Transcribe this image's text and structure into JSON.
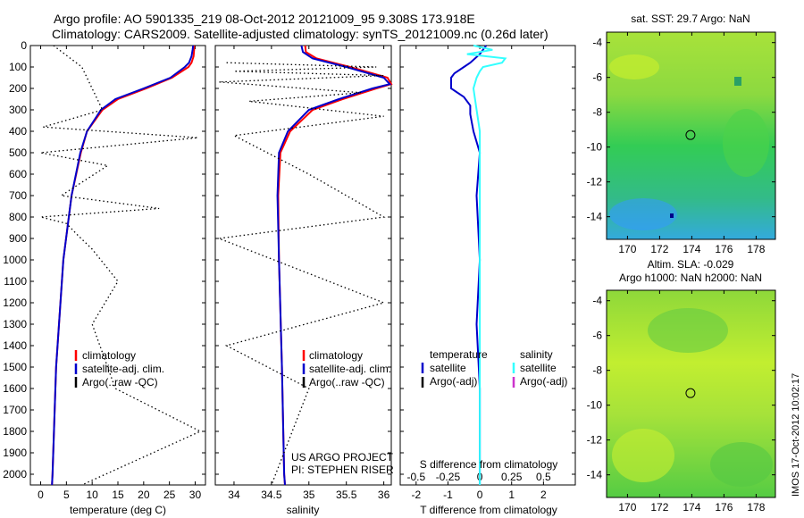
{
  "header": {
    "title_line1": "Argo profile: AO 5901335_219 08-Oct-2012 20121009_95 9.308S 173.918E",
    "title_line2": "Climatology: CARS2009. Satellite-adjusted climatology: synTS_20121009.nc (0.26d later)"
  },
  "map_titles": {
    "top": "sat. SST: 29.7 Argo: NaN",
    "bottom_line1": "Altim. SLA: -0.029",
    "bottom_line2": "Argo h1000: NaN h2000: NaN"
  },
  "side_stamp": "IMOS 17-Oct-2012 10:02:17",
  "credits": {
    "line1": "US ARGO PROJECT",
    "line2": "PI: STEPHEN RISER"
  },
  "colors": {
    "climatology": "#ff0000",
    "satellite": "#0000cc",
    "satellite_salinity_diff": "#33ffff",
    "argo": "#000000",
    "argo_salinity_diff": "#cc33cc"
  },
  "chart_data": [
    {
      "type": "line",
      "panel": "temperature",
      "xlabel": "temperature (deg C)",
      "ylabel": "",
      "xlim": [
        -2,
        32
      ],
      "ylim": [
        0,
        2050
      ],
      "y_reversed": true,
      "xticks": [
        0,
        5,
        10,
        15,
        20,
        25,
        30
      ],
      "yticks": [
        0,
        100,
        200,
        300,
        400,
        500,
        600,
        700,
        800,
        900,
        1000,
        1100,
        1200,
        1300,
        1400,
        1500,
        1600,
        1700,
        1800,
        1900,
        2000
      ],
      "legend": [
        "climatology",
        "satellite-adj. clim.",
        "Argo(..raw -QC)"
      ],
      "series": [
        {
          "name": "climatology",
          "depth": [
            0,
            20,
            50,
            80,
            100,
            150,
            200,
            250,
            300,
            400,
            500,
            700,
            1000,
            1500,
            2000,
            2050
          ],
          "values": [
            29.8,
            29.8,
            29.7,
            29.3,
            28.7,
            25.5,
            20.5,
            15.0,
            12.0,
            9.0,
            7.8,
            6.0,
            4.4,
            3.0,
            2.3,
            2.2
          ]
        },
        {
          "name": "satellite-adj. clim.",
          "depth": [
            0,
            20,
            50,
            80,
            100,
            150,
            200,
            250,
            300,
            400,
            500,
            700,
            1000,
            1500,
            2000,
            2050
          ],
          "values": [
            29.6,
            29.5,
            29.3,
            28.8,
            28.0,
            25.2,
            20.0,
            14.5,
            11.7,
            9.0,
            7.7,
            6.0,
            4.4,
            3.0,
            2.3,
            2.2
          ]
        },
        {
          "name": "Argo(..raw -QC)",
          "depth": [
            0,
            100,
            300,
            380,
            430,
            500,
            560,
            700,
            760,
            800,
            830,
            880,
            950,
            1100,
            1300,
            1600,
            1800,
            2050
          ],
          "values": [
            2.5,
            8.0,
            12.0,
            0.5,
            30.5,
            0.0,
            13.0,
            4.0,
            23.0,
            0.0,
            5.0,
            7.0,
            10.0,
            15.0,
            10.0,
            14.5,
            31.0,
            8.0
          ]
        }
      ]
    },
    {
      "type": "line",
      "panel": "salinity",
      "xlabel": "salinity",
      "xlim": [
        33.75,
        36.1
      ],
      "ylim": [
        0,
        2050
      ],
      "y_reversed": true,
      "xticks": [
        34,
        34.5,
        35,
        35.5,
        36
      ],
      "legend": [
        "climatology",
        "satellite-adj. clim.",
        "Argo(..raw -QC)"
      ],
      "series": [
        {
          "name": "climatology",
          "depth": [
            0,
            30,
            60,
            100,
            150,
            180,
            200,
            250,
            300,
            400,
            500,
            700,
            1000,
            1500,
            2000,
            2050
          ],
          "values": [
            34.95,
            34.96,
            35.1,
            35.55,
            36.05,
            36.1,
            35.9,
            35.45,
            35.05,
            34.75,
            34.62,
            34.59,
            34.6,
            34.64,
            34.67,
            34.68
          ]
        },
        {
          "name": "satellite-adj. clim.",
          "depth": [
            0,
            30,
            60,
            100,
            150,
            180,
            200,
            250,
            300,
            400,
            500,
            700,
            1000,
            1500,
            2000,
            2050
          ],
          "values": [
            34.9,
            34.92,
            35.05,
            35.5,
            36.0,
            36.08,
            35.85,
            35.4,
            35.0,
            34.72,
            34.6,
            34.58,
            34.6,
            34.64,
            34.67,
            34.68
          ]
        },
        {
          "name": "Argo(..raw -QC)",
          "depth": [
            80,
            100,
            120,
            140,
            170,
            220,
            260,
            330,
            420,
            600,
            800,
            900,
            1200,
            1400,
            1600,
            2050
          ],
          "values": [
            33.9,
            35.9,
            34.0,
            36.0,
            33.8,
            35.7,
            34.2,
            36.0,
            34.0,
            35.0,
            36.0,
            33.8,
            36.0,
            33.9,
            35.0,
            34.5
          ]
        }
      ]
    },
    {
      "type": "line",
      "panel": "difference",
      "xlabel": "T difference from climatology",
      "xlabel2": "S difference from climatology",
      "xlim": [
        -2.5,
        3.0
      ],
      "ylim": [
        0,
        2050
      ],
      "y_reversed": true,
      "xticks": [
        -2,
        -1,
        0,
        1,
        2
      ],
      "xticks_secondary": {
        "labels": [
          "-0.5",
          "-0.25",
          "0",
          "0.25",
          "0.5"
        ],
        "values": [
          -2,
          -1,
          0,
          1,
          2
        ]
      },
      "legend_temperature": [
        "temperature",
        "satellite",
        "Argo(-adj)"
      ],
      "legend_salinity": [
        "salinity",
        "satellite",
        "Argo(-adj)"
      ],
      "series": [
        {
          "name": "temperature satellite",
          "depth": [
            0,
            40,
            80,
            100,
            130,
            150,
            200,
            240,
            280,
            320,
            400,
            500,
            700,
            1000,
            1300,
            1600,
            2050
          ],
          "values": [
            0.2,
            0.0,
            -0.3,
            -0.5,
            -0.8,
            -0.9,
            -0.9,
            -0.5,
            -0.3,
            -0.3,
            -0.2,
            0.0,
            -0.1,
            0.0,
            -0.1,
            0.0,
            0.0
          ]
        },
        {
          "name": "salinity satellite",
          "depth": [
            0,
            20,
            40,
            60,
            80,
            100,
            120,
            150,
            200,
            300,
            400,
            500,
            700,
            1000,
            1500,
            2050
          ],
          "values": [
            -0.2,
            0.4,
            -0.4,
            0.8,
            0.7,
            0.1,
            0.0,
            -0.1,
            -0.2,
            -0.1,
            0.0,
            0.0,
            0.0,
            0.0,
            0.0,
            0.0
          ]
        }
      ]
    },
    {
      "type": "heatmap",
      "panel": "sst map",
      "xlim": [
        168.7,
        179.2
      ],
      "ylim": [
        -15.3,
        -3.4
      ],
      "xticks": [
        170,
        172,
        174,
        176,
        178
      ],
      "yticks": [
        -4,
        -6,
        -8,
        -10,
        -12,
        -14
      ],
      "profile_marker": {
        "lon": 173.918,
        "lat": -9.308
      }
    },
    {
      "type": "heatmap",
      "panel": "sla map",
      "xlim": [
        168.7,
        179.2
      ],
      "ylim": [
        -15.3,
        -3.4
      ],
      "xticks": [
        170,
        172,
        174,
        176,
        178
      ],
      "yticks": [
        -4,
        -6,
        -8,
        -10,
        -12,
        -14
      ],
      "profile_marker": {
        "lon": 173.918,
        "lat": -9.308
      }
    }
  ]
}
